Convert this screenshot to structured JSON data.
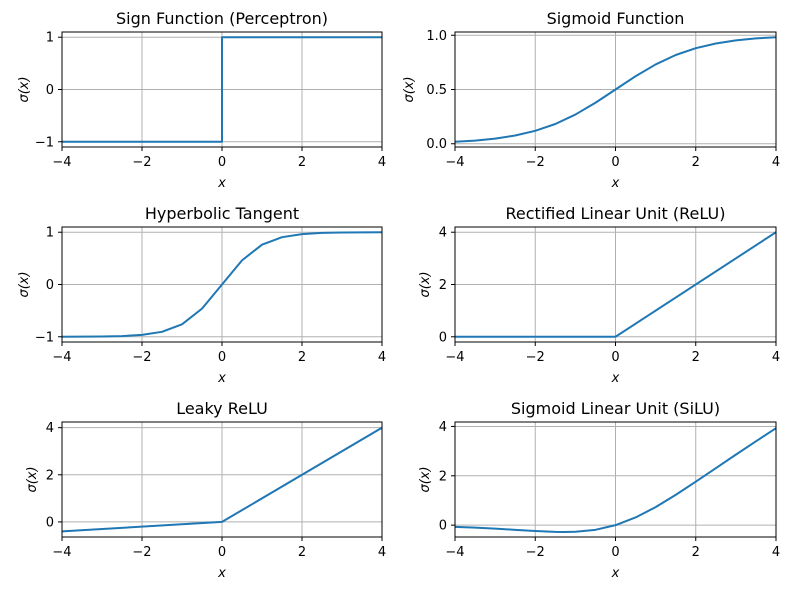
{
  "figure": {
    "background": "#ffffff",
    "line_color": "#1f77b4",
    "grid_color": "#b0b0b0"
  },
  "chart_data": [
    {
      "type": "line",
      "function": "sign",
      "title": "Sign Function (Perceptron)",
      "xlabel": "x",
      "ylabel": "σ(x)",
      "xlim": [
        -4,
        4
      ],
      "ylim": [
        -1.1,
        1.1
      ],
      "xticks": [
        -4,
        -2,
        0,
        2,
        4
      ],
      "yticks": [
        -1,
        0,
        1
      ],
      "xtick_labels": [
        "−4",
        "−2",
        "0",
        "2",
        "4"
      ],
      "ytick_labels": [
        "−1",
        "0",
        "1"
      ],
      "grid": true,
      "series": [
        {
          "x": [
            -4,
            0,
            0,
            4
          ],
          "values": [
            -1,
            -1,
            1,
            1
          ]
        }
      ]
    },
    {
      "type": "line",
      "function": "sigmoid",
      "title": "Sigmoid Function",
      "xlabel": "x",
      "ylabel": "σ(x)",
      "xlim": [
        -4,
        4
      ],
      "ylim": [
        -0.03,
        1.03
      ],
      "xticks": [
        -4,
        -2,
        0,
        2,
        4
      ],
      "yticks": [
        0,
        0.5,
        1
      ],
      "xtick_labels": [
        "−4",
        "−2",
        "0",
        "2",
        "4"
      ],
      "ytick_labels": [
        "0.0",
        "0.5",
        "1.0"
      ],
      "grid": true,
      "series": [
        {
          "x": [
            -4,
            -3.5,
            -3,
            -2.5,
            -2,
            -1.5,
            -1,
            -0.5,
            0,
            0.5,
            1,
            1.5,
            2,
            2.5,
            3,
            3.5,
            4
          ],
          "values": [
            0.018,
            0.029,
            0.047,
            0.076,
            0.119,
            0.182,
            0.269,
            0.378,
            0.5,
            0.622,
            0.731,
            0.818,
            0.881,
            0.924,
            0.953,
            0.971,
            0.982
          ]
        }
      ]
    },
    {
      "type": "line",
      "function": "tanh",
      "title": "Hyperbolic Tangent",
      "xlabel": "x",
      "ylabel": "σ(x)",
      "xlim": [
        -4,
        4
      ],
      "ylim": [
        -1.1,
        1.1
      ],
      "xticks": [
        -4,
        -2,
        0,
        2,
        4
      ],
      "yticks": [
        -1,
        0,
        1
      ],
      "xtick_labels": [
        "−4",
        "−2",
        "0",
        "2",
        "4"
      ],
      "ytick_labels": [
        "−1",
        "0",
        "1"
      ],
      "grid": true,
      "series": [
        {
          "x": [
            -4,
            -3.5,
            -3,
            -2.5,
            -2,
            -1.5,
            -1,
            -0.5,
            0,
            0.5,
            1,
            1.5,
            2,
            2.5,
            3,
            3.5,
            4
          ],
          "values": [
            -0.999,
            -0.998,
            -0.995,
            -0.987,
            -0.964,
            -0.905,
            -0.762,
            -0.462,
            0,
            0.462,
            0.762,
            0.905,
            0.964,
            0.987,
            0.995,
            0.998,
            0.999
          ]
        }
      ]
    },
    {
      "type": "line",
      "function": "relu",
      "title": "Rectified Linear Unit (ReLU)",
      "xlabel": "x",
      "ylabel": "σ(x)",
      "xlim": [
        -4,
        4
      ],
      "ylim": [
        -0.2,
        4.2
      ],
      "xticks": [
        -4,
        -2,
        0,
        2,
        4
      ],
      "yticks": [
        0,
        2,
        4
      ],
      "xtick_labels": [
        "−4",
        "−2",
        "0",
        "2",
        "4"
      ],
      "ytick_labels": [
        "0",
        "2",
        "4"
      ],
      "grid": true,
      "series": [
        {
          "x": [
            -4,
            0,
            4
          ],
          "values": [
            0,
            0,
            4
          ]
        }
      ]
    },
    {
      "type": "line",
      "function": "leaky-relu",
      "title": "Leaky ReLU",
      "xlabel": "x",
      "ylabel": "σ(x)",
      "xlim": [
        -4,
        4
      ],
      "ylim": [
        -0.64,
        4.24
      ],
      "xticks": [
        -4,
        -2,
        0,
        2,
        4
      ],
      "yticks": [
        0,
        2,
        4
      ],
      "xtick_labels": [
        "−4",
        "−2",
        "0",
        "2",
        "4"
      ],
      "ytick_labels": [
        "0",
        "2",
        "4"
      ],
      "grid": true,
      "series": [
        {
          "x": [
            -4,
            0,
            4
          ],
          "values": [
            -0.4,
            0,
            4
          ]
        }
      ]
    },
    {
      "type": "line",
      "function": "silu",
      "title": "Sigmoid Linear Unit (SiLU)",
      "xlabel": "x",
      "ylabel": "σ(x)",
      "xlim": [
        -4,
        4
      ],
      "ylim": [
        -0.48,
        4.18
      ],
      "xticks": [
        -4,
        -2,
        0,
        2,
        4
      ],
      "yticks": [
        0,
        2,
        4
      ],
      "xtick_labels": [
        "−4",
        "−2",
        "0",
        "2",
        "4"
      ],
      "ytick_labels": [
        "0",
        "2",
        "4"
      ],
      "grid": true,
      "series": [
        {
          "x": [
            -4,
            -3.5,
            -3,
            -2.5,
            -2,
            -1.5,
            -1.28,
            -1,
            -0.5,
            0,
            0.5,
            1,
            1.5,
            2,
            2.5,
            3,
            3.5,
            4
          ],
          "values": [
            -0.072,
            -0.102,
            -0.142,
            -0.19,
            -0.238,
            -0.273,
            -0.278,
            -0.269,
            -0.189,
            0,
            0.311,
            0.731,
            1.227,
            1.762,
            2.31,
            2.858,
            3.398,
            3.928
          ]
        }
      ]
    }
  ]
}
